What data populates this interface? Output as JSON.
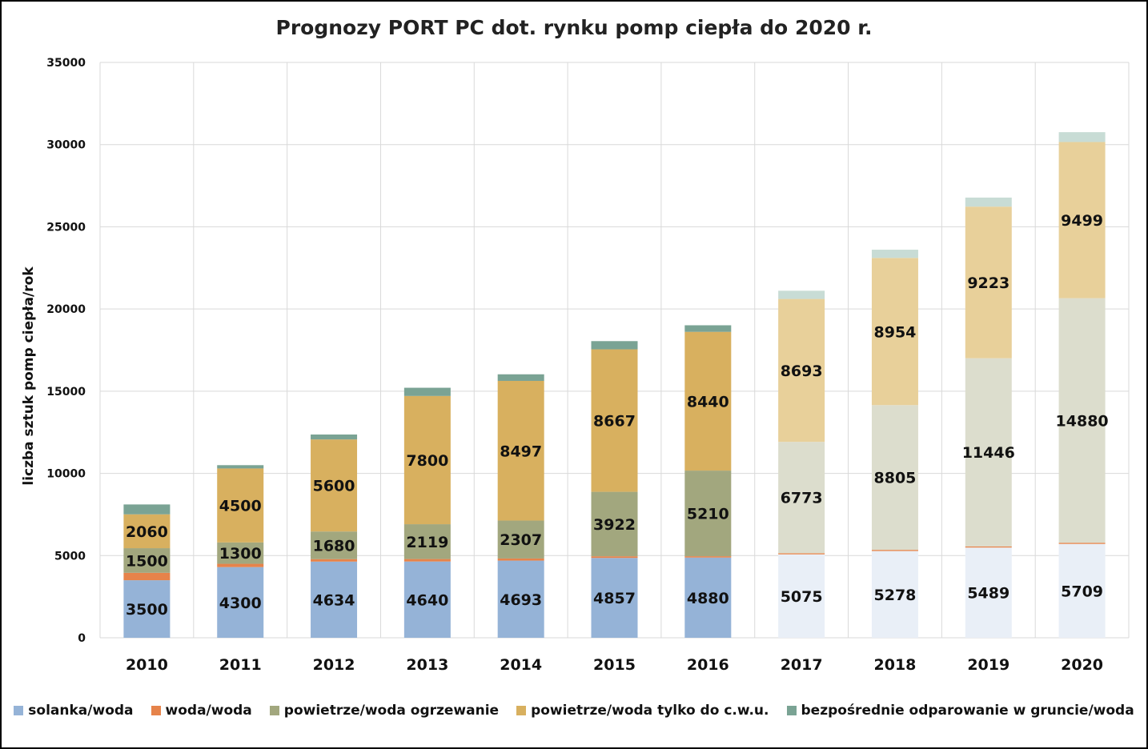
{
  "chart_data": {
    "type": "bar",
    "stacked": true,
    "title": "Prognozy PORT PC dot. rynku pomp ciepła do 2020 r.",
    "xlabel": "",
    "ylabel": "liczba sztuk pomp ciepła/rok",
    "ylim": [
      0,
      35000
    ],
    "yticks": [
      "0",
      "5000",
      "10000",
      "15000",
      "20000",
      "25000",
      "30000",
      "35000"
    ],
    "grid": true,
    "legend_position": "bottom",
    "categories": [
      "2010",
      "2011",
      "2012",
      "2013",
      "2014",
      "2015",
      "2016",
      "2017",
      "2018",
      "2019",
      "2020"
    ],
    "forecast_from_index": 7,
    "series": [
      {
        "name": "solanka/woda",
        "color": "#95b3d7",
        "forecast_color": "#e9eff7",
        "labeled": true,
        "values": [
          3500,
          4300,
          4634,
          4640,
          4693,
          4857,
          4880,
          5075,
          5278,
          5489,
          5709
        ]
      },
      {
        "name": "woda/woda",
        "color": "#e6834a",
        "forecast_color": "#e6834a",
        "labeled": false,
        "values": [
          450,
          200,
          150,
          150,
          130,
          100,
          80,
          70,
          70,
          70,
          70
        ]
      },
      {
        "name": "powietrze/woda ogrzewanie",
        "color": "#a2a77e",
        "forecast_color": "#dcddcd",
        "labeled": true,
        "values": [
          1500,
          1300,
          1680,
          2119,
          2307,
          3922,
          5210,
          6773,
          8805,
          11446,
          14880
        ]
      },
      {
        "name": "powietrze/woda tylko do c.w.u.",
        "color": "#d8b05f",
        "forecast_color": "#e8d09a",
        "labeled": true,
        "values": [
          2060,
          4500,
          5600,
          7800,
          8497,
          8667,
          8440,
          8693,
          8954,
          9223,
          9499
        ]
      },
      {
        "name": "bezpośrednie odparowanie w gruncie/woda",
        "color": "#7aa394",
        "forecast_color": "#c8dcd5",
        "labeled": false,
        "values": [
          600,
          200,
          300,
          500,
          400,
          500,
          400,
          500,
          500,
          550,
          600
        ]
      }
    ]
  }
}
